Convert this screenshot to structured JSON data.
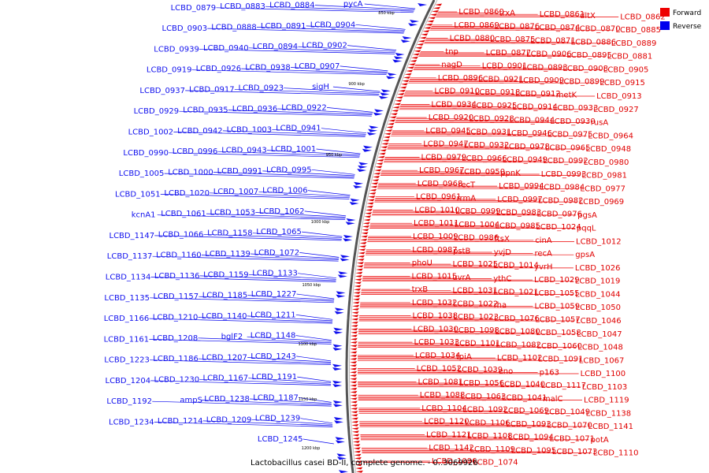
{
  "caption": "Lactobacillus casei BD-II, complete genome. - 0..3069926",
  "legend": {
    "forward_label": "Forward",
    "reverse_label": "Reverse",
    "forward_color": "#ee0000",
    "reverse_color": "#0000ee"
  },
  "scale_ticks": [
    "850 kbp",
    "900 kbp",
    "950 kbp",
    "1000 kbp",
    "1050 kbp",
    "1100 kbp",
    "1150 kbp",
    "1200 kbp"
  ],
  "forward_genes": [
    "LCBD_0860",
    "trxA",
    "LCBD_0861",
    "dltX",
    "LCBD_0862",
    "LCBD_0869",
    "LCBD_0876",
    "LCBD_0874",
    "LCBD_0870",
    "LCBD_0885",
    "LCBD_0880",
    "LCBD_0875",
    "LCBD_0871",
    "LCBD_0886",
    "LCBD_0889",
    "tnp",
    "LCBD_0877",
    "LCBD_0906",
    "LCBD_0895",
    "LCBD_0881",
    "nagD",
    "LCBD_0901",
    "LCBD_0893",
    "LCBD_0908",
    "LCBD_0905",
    "LCBD_0896",
    "LCBD_0921",
    "LCBD_0909",
    "LCBD_0899",
    "LCBD_0915",
    "LCBD_0910",
    "LCBD_0918",
    "LCBD_0912",
    "metK",
    "LCBD_0913",
    "LCBD_0934",
    "LCBD_0925",
    "LCBD_0914",
    "LCBD_0933",
    "LCBD_0927",
    "LCBD_0920",
    "LCBD_0928",
    "LCBD_0944",
    "LCBD_0930",
    "rusA",
    "LCBD_0945",
    "LCBD_0931",
    "LCBD_0946",
    "LCBD_0975",
    "LCBD_0964",
    "LCBD_0947",
    "LCBD_0932",
    "LCBD_0978",
    "LCBD_0965",
    "LCBD_0948",
    "LCBD_0979",
    "LCBD_0966",
    "LCBD_0949",
    "LCBD_0992",
    "LCBD_0980",
    "LCBD_0967",
    "LCBD_0950",
    "ppnK",
    "LCBD_0993",
    "LCBD_0981",
    "LCBD_0968",
    "recT",
    "LCBD_0994",
    "LCBD_0984",
    "LCBD_0977",
    "LCBD_0961",
    "rrmA",
    "LCBD_0997",
    "LCBD_0982",
    "LCBD_0969",
    "LCBD_1010",
    "LCBD_0999",
    "LCBD_0983",
    "LCBD_0976",
    "pgsA",
    "LCBD_1011",
    "LCBD_1004",
    "LCBD_0985",
    "LCBD_1024",
    "pqqL",
    "LCBD_1009",
    "LCBD_0986",
    "ftsX",
    "cinA",
    "LCBD_1012",
    "LCBD_0987",
    "pstB",
    "yvjD",
    "recA",
    "gpsA",
    "phoU",
    "LCBD_1025",
    "LCBD_1014",
    "yvrH",
    "LCBD_1026",
    "LCBD_1015",
    "uvrA",
    "ythC",
    "LCBD_1029",
    "LCBD_1019",
    "trxB",
    "LCBD_1031",
    "LCBD_1021",
    "LCBD_1055",
    "LCBD_1044",
    "LCBD_1032",
    "LCBD_1022",
    "rha",
    "LCBD_1059",
    "LCBD_1050",
    "LCBD_1038",
    "LCBD_1023",
    "LCBD_1076",
    "LCBD_1057",
    "LCBD_1046",
    "LCBD_1030",
    "LCBD_1098",
    "LCBD_1080",
    "LCBD_1058",
    "LCBD_1047",
    "LCBD_1033",
    "LCBD_1101",
    "LCBD_1082",
    "LCBD_1060",
    "LCBD_1048",
    "LCBD_1034",
    "tpiA",
    "LCBD_1102",
    "LCBD_1091",
    "LCBD_1067",
    "LCBD_1052",
    "LCBD_1039",
    "eno",
    "p163",
    "LCBD_1100",
    "LCBD_1081",
    "LCBD_1056",
    "LCBD_1040",
    "LCBD_1117",
    "LCBD_1103",
    "LCBD_1088",
    "LCBD_1063",
    "LCBD_1041",
    "malC",
    "LCBD_1119",
    "LCBD_1104",
    "LCBD_1092",
    "LCBD_1069",
    "LCBD_1049",
    "LCBD_1138",
    "LCBD_1120",
    "LCBD_1106",
    "LCBD_1093",
    "LCBD_1070",
    "LCBD_1141",
    "LCBD_1121",
    "LCBD_1108",
    "LCBD_1094",
    "LCBD_1071",
    "potA",
    "LCBD_1142",
    "LCBD_1109",
    "LCBD_1095",
    "LCBD_1073",
    "LCBD_1110",
    "LCBD_1096",
    "LCBD_1074"
  ],
  "reverse_genes": [
    "pycA",
    "LCBD_0884",
    "LCBD_0883",
    "LCBD_0879",
    "LCBD_0904",
    "LCBD_0891",
    "LCBD_0888",
    "LCBD_0903",
    "LCBD_0902",
    "LCBD_0894",
    "LCBD_0940",
    "LCBD_0939",
    "LCBD_0907",
    "LCBD_0938",
    "LCBD_0926",
    "LCBD_0919",
    "sigH",
    "LCBD_0923",
    "LCBD_0917",
    "LCBD_0937",
    "LCBD_0922",
    "LCBD_0936",
    "LCBD_0935",
    "LCBD_0929",
    "LCBD_0941",
    "LCBD_1003",
    "LCBD_0942",
    "LCBD_1002",
    "LCBD_1001",
    "LCBD_0943",
    "LCBD_0996",
    "LCBD_0990",
    "LCBD_0995",
    "LCBD_0991",
    "LCBD_1000",
    "LCBD_1005",
    "LCBD_1006",
    "LCBD_1007",
    "LCBD_1020",
    "LCBD_1051",
    "LCBD_1062",
    "LCBD_1053",
    "LCBD_1061",
    "kcnA1",
    "LCBD_1065",
    "LCBD_1158",
    "LCBD_1066",
    "LCBD_1147",
    "LCBD_1072",
    "LCBD_1139",
    "LCBD_1160",
    "LCBD_1137",
    "LCBD_1133",
    "LCBD_1159",
    "LCBD_1136",
    "LCBD_1134",
    "LCBD_1227",
    "LCBD_1185",
    "LCBD_1157",
    "LCBD_1135",
    "LCBD_1211",
    "LCBD_1140",
    "LCBD_1210",
    "LCBD_1166",
    "LCBD_1148",
    "bglF2",
    "LCBD_1208",
    "LCBD_1161",
    "LCBD_1243",
    "LCBD_1207",
    "LCBD_1186",
    "LCBD_1223",
    "LCBD_1191",
    "LCBD_1167",
    "LCBD_1230",
    "LCBD_1204",
    "LCBD_1187",
    "LCBD_1238",
    "ampS",
    "LCBD_1192",
    "LCBD_1239",
    "LCBD_1209",
    "LCBD_1214",
    "LCBD_1234",
    "LCBD_1245"
  ]
}
